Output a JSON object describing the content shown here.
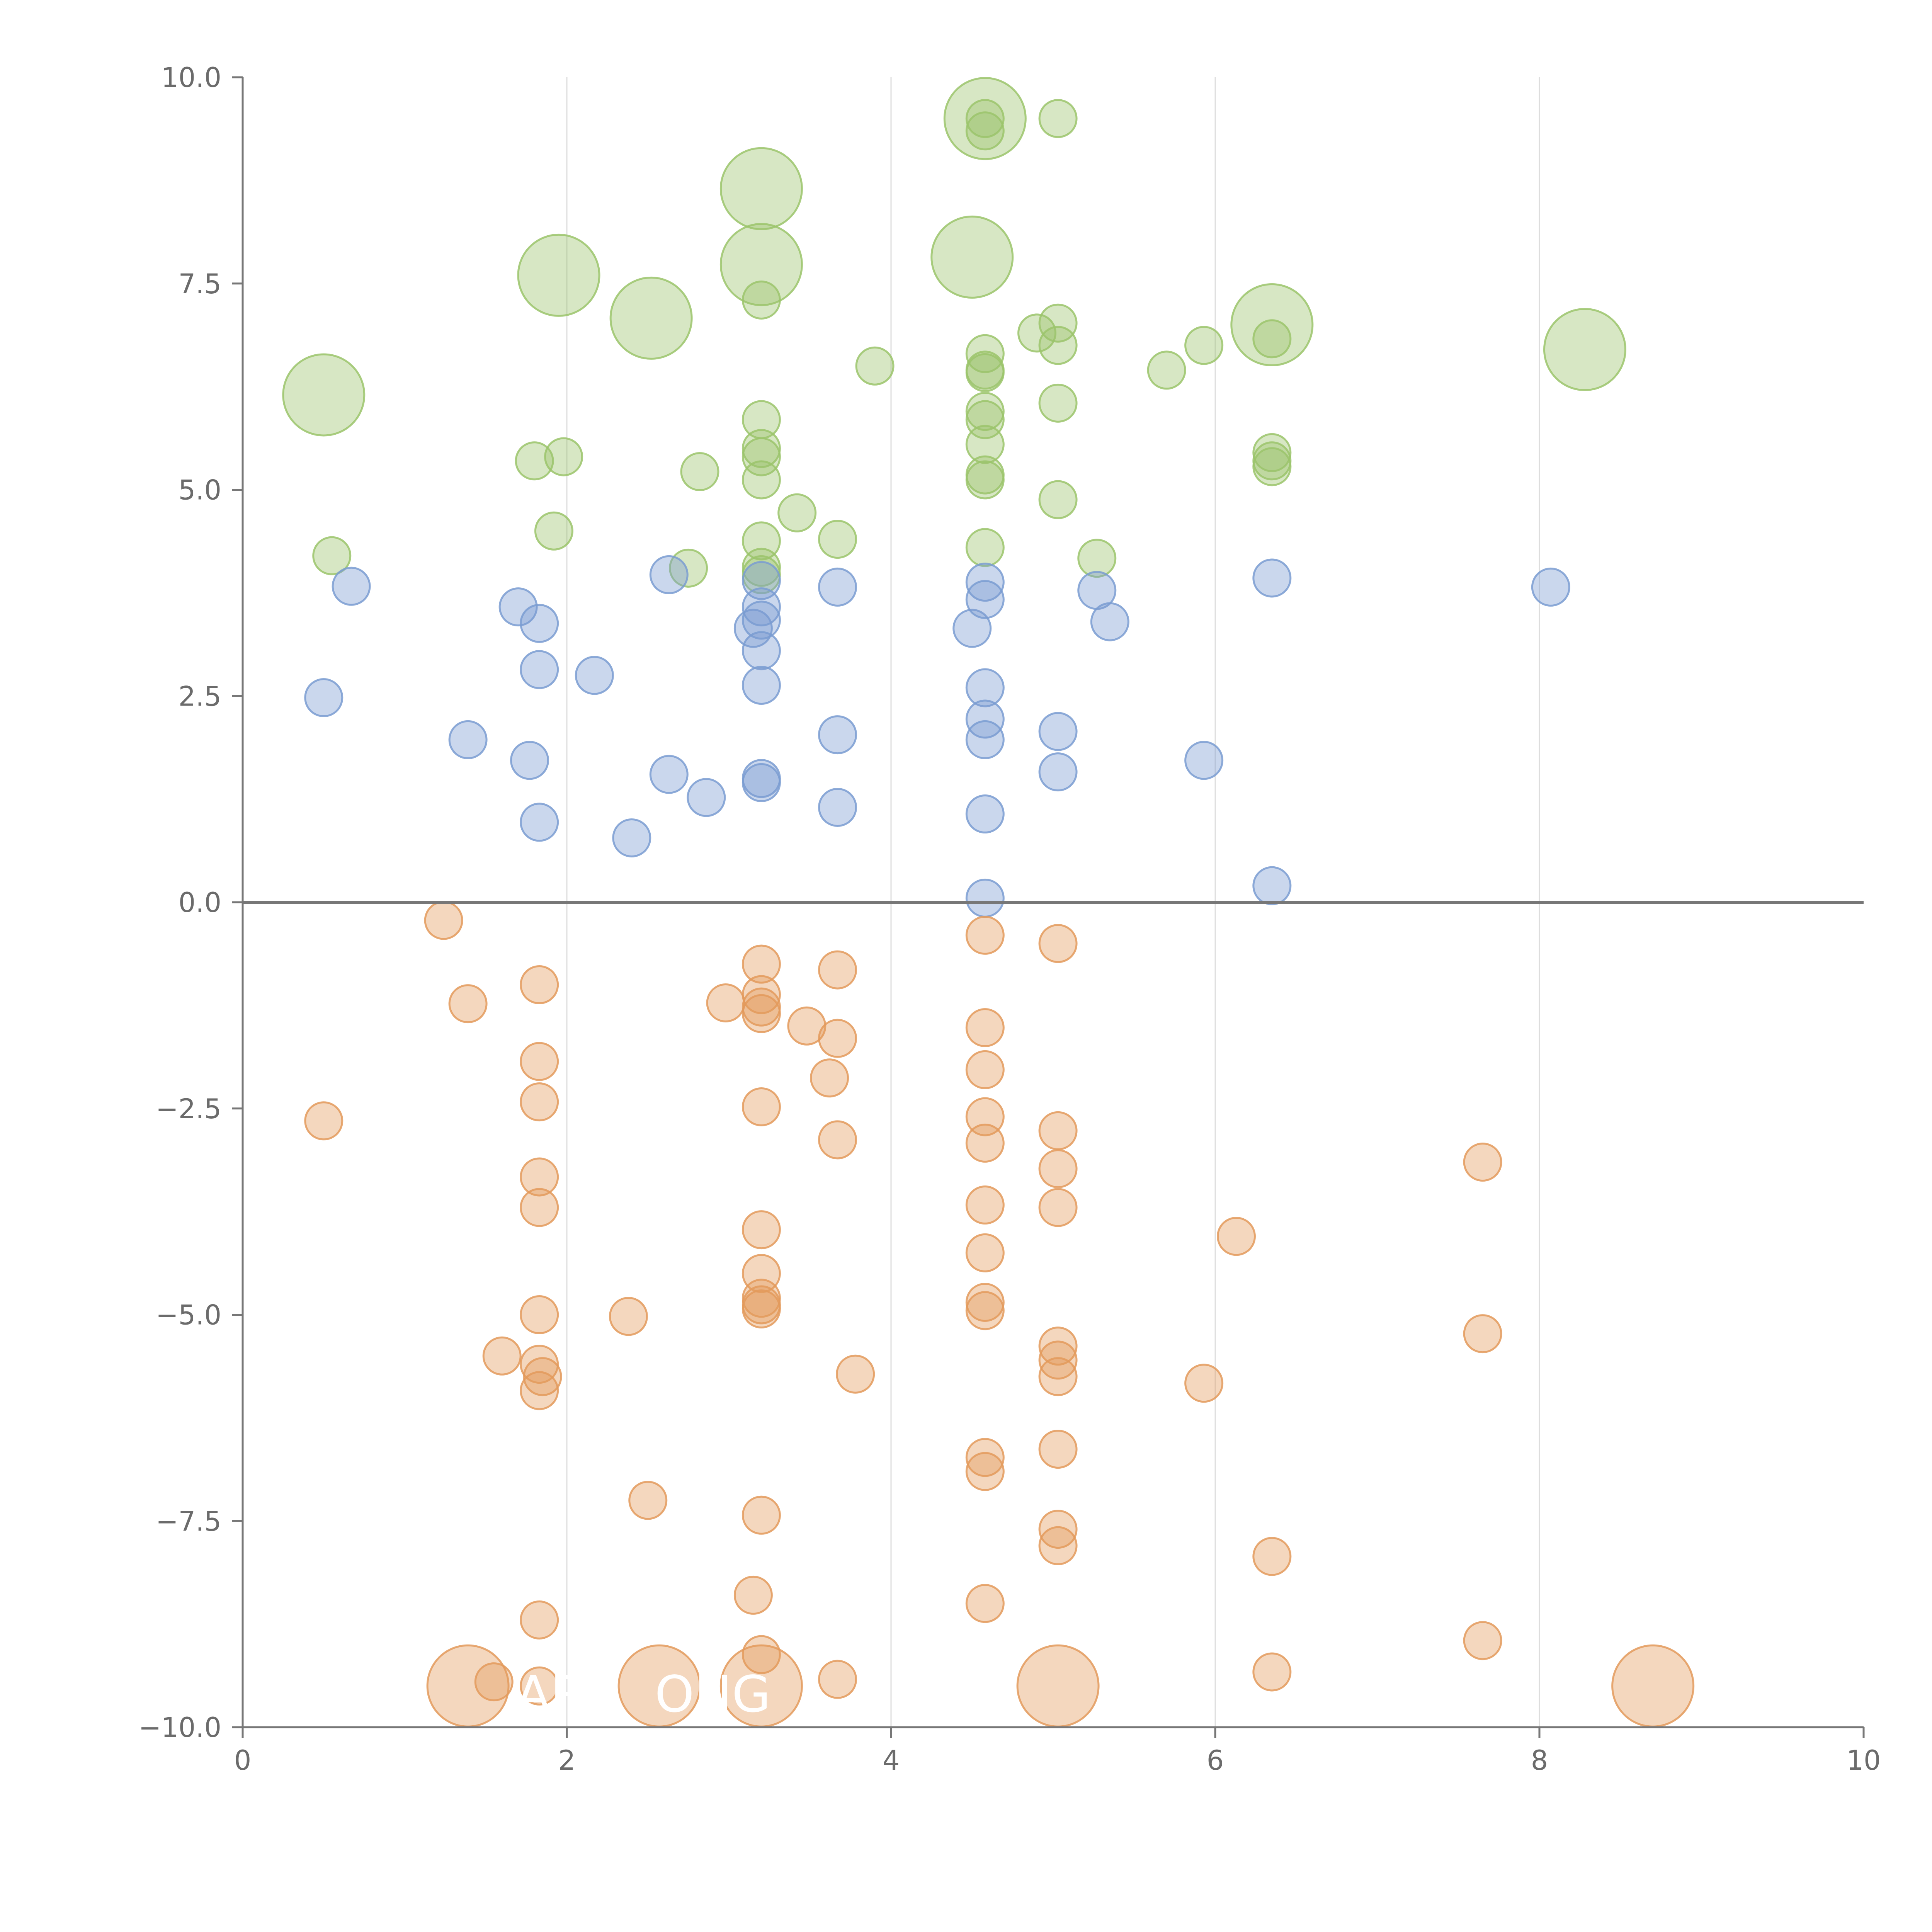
{
  "chart_data": {
    "type": "scatter",
    "title": "",
    "xlabel": "",
    "ylabel": "",
    "xlim": [
      0,
      10
    ],
    "ylim": [
      -10,
      10
    ],
    "x_ticks": [
      "0",
      "2",
      "4",
      "6",
      "8",
      "10"
    ],
    "y_ticks": [
      "10.0",
      "7.5",
      "5.0",
      "2.5",
      "0.0",
      "−2.5",
      "−5.0",
      "−7.5",
      "−10.0"
    ],
    "x_grid_values": [
      2,
      4,
      6,
      8
    ],
    "reference_line_y": 0,
    "colors": {
      "green": "#9bc46b",
      "blue": "#7a9cd1",
      "orange": "#e39a5c"
    },
    "point_fill_opacity": 0.4,
    "bubble_labels": [
      {
        "text": "AR",
        "x": 1.9,
        "y": -9.6
      },
      {
        "text": "ONG",
        "x": 2.9,
        "y": -9.6
      }
    ],
    "series": [
      {
        "name": "green",
        "color": "#9bc46b",
        "points": [
          [
            0.5,
            6.15,
            2
          ],
          [
            0.55,
            4.2,
            1
          ],
          [
            1.8,
            5.35,
            1
          ],
          [
            1.95,
            7.6,
            2
          ],
          [
            1.98,
            5.4,
            1
          ],
          [
            1.92,
            4.5,
            1
          ],
          [
            2.52,
            7.08,
            2
          ],
          [
            2.82,
            5.22,
            1
          ],
          [
            2.75,
            4.05,
            1
          ],
          [
            3.2,
            8.65,
            2
          ],
          [
            3.2,
            7.73,
            2
          ],
          [
            3.2,
            7.3,
            1
          ],
          [
            3.2,
            5.85,
            1
          ],
          [
            3.2,
            5.5,
            1
          ],
          [
            3.2,
            5.4,
            1
          ],
          [
            3.2,
            5.12,
            1
          ],
          [
            3.2,
            4.38,
            1
          ],
          [
            3.2,
            4.06,
            1
          ],
          [
            3.2,
            3.97,
            1
          ],
          [
            3.42,
            4.72,
            1
          ],
          [
            3.67,
            4.4,
            1
          ],
          [
            3.9,
            6.5,
            1
          ],
          [
            4.5,
            7.82,
            2
          ],
          [
            4.58,
            9.5,
            2
          ],
          [
            4.58,
            9.5,
            1
          ],
          [
            4.58,
            9.35,
            1
          ],
          [
            4.58,
            6.65,
            1
          ],
          [
            4.58,
            6.45,
            1
          ],
          [
            4.58,
            6.42,
            1
          ],
          [
            4.58,
            5.95,
            1
          ],
          [
            4.58,
            5.85,
            1
          ],
          [
            4.58,
            5.55,
            1
          ],
          [
            4.58,
            5.18,
            1
          ],
          [
            4.58,
            5.12,
            1
          ],
          [
            4.58,
            4.3,
            1
          ],
          [
            4.9,
            6.9,
            1
          ],
          [
            5.03,
            9.5,
            1
          ],
          [
            5.03,
            7.02,
            1
          ],
          [
            5.03,
            6.75,
            1
          ],
          [
            5.03,
            6.05,
            1
          ],
          [
            5.03,
            4.88,
            1
          ],
          [
            5.27,
            4.17,
            1
          ],
          [
            5.7,
            6.45,
            1
          ],
          [
            5.93,
            6.75,
            1
          ],
          [
            6.35,
            7.0,
            2
          ],
          [
            6.35,
            6.83,
            1
          ],
          [
            6.35,
            5.45,
            1
          ],
          [
            6.35,
            5.35,
            1
          ],
          [
            6.35,
            5.28,
            1
          ],
          [
            8.28,
            6.7,
            2
          ]
        ]
      },
      {
        "name": "blue",
        "color": "#7a9cd1",
        "points": [
          [
            0.5,
            2.48,
            1
          ],
          [
            0.67,
            3.83,
            1
          ],
          [
            1.39,
            1.97,
            1
          ],
          [
            1.7,
            3.58,
            1
          ],
          [
            1.77,
            1.72,
            1
          ],
          [
            1.83,
            3.38,
            1
          ],
          [
            1.83,
            2.82,
            1
          ],
          [
            1.83,
            0.97,
            1
          ],
          [
            2.17,
            2.75,
            1
          ],
          [
            2.4,
            0.78,
            1
          ],
          [
            2.63,
            3.97,
            1
          ],
          [
            2.63,
            1.55,
            1
          ],
          [
            2.86,
            1.27,
            1
          ],
          [
            3.15,
            3.32,
            1
          ],
          [
            3.2,
            3.9,
            1
          ],
          [
            3.2,
            3.58,
            1
          ],
          [
            3.2,
            3.42,
            1
          ],
          [
            3.2,
            3.05,
            1
          ],
          [
            3.2,
            2.63,
            1
          ],
          [
            3.2,
            1.5,
            1
          ],
          [
            3.2,
            1.45,
            1
          ],
          [
            3.67,
            3.82,
            1
          ],
          [
            3.67,
            2.03,
            1
          ],
          [
            3.67,
            1.15,
            1
          ],
          [
            4.5,
            3.32,
            1
          ],
          [
            4.58,
            3.88,
            1
          ],
          [
            4.58,
            3.67,
            1
          ],
          [
            4.58,
            2.6,
            1
          ],
          [
            4.58,
            2.22,
            1
          ],
          [
            4.58,
            1.97,
            1
          ],
          [
            4.58,
            1.07,
            1
          ],
          [
            4.58,
            0.05,
            1
          ],
          [
            5.03,
            2.07,
            1
          ],
          [
            5.03,
            1.58,
            1
          ],
          [
            5.27,
            3.78,
            1
          ],
          [
            5.35,
            3.4,
            1
          ],
          [
            5.93,
            1.72,
            1
          ],
          [
            6.35,
            3.93,
            1
          ],
          [
            6.35,
            0.2,
            1
          ],
          [
            8.07,
            3.82,
            1
          ]
        ]
      },
      {
        "name": "orange",
        "color": "#e39a5c",
        "points": [
          [
            0.5,
            -2.65,
            1
          ],
          [
            1.24,
            -0.22,
            1
          ],
          [
            1.39,
            -1.23,
            1
          ],
          [
            1.39,
            -9.5,
            2
          ],
          [
            1.55,
            -9.45,
            1
          ],
          [
            1.6,
            -5.5,
            1
          ],
          [
            1.83,
            -1.0,
            1
          ],
          [
            1.83,
            -1.93,
            1
          ],
          [
            1.83,
            -2.42,
            1
          ],
          [
            1.83,
            -3.33,
            1
          ],
          [
            1.83,
            -3.7,
            1
          ],
          [
            1.83,
            -5.0,
            1
          ],
          [
            1.83,
            -5.6,
            1
          ],
          [
            1.85,
            -5.75,
            1
          ],
          [
            1.83,
            -5.92,
            1
          ],
          [
            1.83,
            -8.7,
            1
          ],
          [
            1.83,
            -9.5,
            1
          ],
          [
            2.38,
            -5.02,
            1
          ],
          [
            2.5,
            -7.25,
            1
          ],
          [
            2.57,
            -9.5,
            2
          ],
          [
            2.98,
            -1.22,
            1
          ],
          [
            3.2,
            -0.75,
            1
          ],
          [
            3.2,
            -1.12,
            1
          ],
          [
            3.2,
            -1.27,
            1
          ],
          [
            3.2,
            -1.35,
            1
          ],
          [
            3.2,
            -2.48,
            1
          ],
          [
            3.2,
            -3.97,
            1
          ],
          [
            3.2,
            -4.5,
            1
          ],
          [
            3.2,
            -4.8,
            1
          ],
          [
            3.2,
            -4.88,
            1
          ],
          [
            3.2,
            -4.93,
            1
          ],
          [
            3.2,
            -7.43,
            1
          ],
          [
            3.15,
            -8.4,
            1
          ],
          [
            3.2,
            -9.12,
            1
          ],
          [
            3.2,
            -9.5,
            2
          ],
          [
            3.48,
            -1.5,
            1
          ],
          [
            3.67,
            -0.82,
            1
          ],
          [
            3.67,
            -1.65,
            1
          ],
          [
            3.62,
            -2.13,
            1
          ],
          [
            3.67,
            -2.88,
            1
          ],
          [
            3.78,
            -5.72,
            1
          ],
          [
            3.67,
            -9.42,
            1
          ],
          [
            4.58,
            -0.4,
            1
          ],
          [
            4.58,
            -1.52,
            1
          ],
          [
            4.58,
            -2.03,
            1
          ],
          [
            4.58,
            -2.6,
            1
          ],
          [
            4.58,
            -2.92,
            1
          ],
          [
            4.58,
            -3.67,
            1
          ],
          [
            4.58,
            -4.25,
            1
          ],
          [
            4.58,
            -4.85,
            1
          ],
          [
            4.58,
            -4.95,
            1
          ],
          [
            4.58,
            -6.73,
            1
          ],
          [
            4.58,
            -6.9,
            1
          ],
          [
            4.58,
            -8.5,
            1
          ],
          [
            5.03,
            -0.5,
            1
          ],
          [
            5.03,
            -2.77,
            1
          ],
          [
            5.03,
            -3.23,
            1
          ],
          [
            5.03,
            -3.7,
            1
          ],
          [
            5.03,
            -5.38,
            1
          ],
          [
            5.03,
            -5.55,
            1
          ],
          [
            5.03,
            -5.75,
            1
          ],
          [
            5.03,
            -6.63,
            1
          ],
          [
            5.03,
            -7.6,
            1
          ],
          [
            5.03,
            -7.8,
            1
          ],
          [
            5.03,
            -9.5,
            2
          ],
          [
            5.93,
            -5.83,
            1
          ],
          [
            6.13,
            -4.05,
            1
          ],
          [
            6.35,
            -7.93,
            1
          ],
          [
            6.35,
            -9.33,
            1
          ],
          [
            7.65,
            -3.15,
            1
          ],
          [
            7.65,
            -5.23,
            1
          ],
          [
            7.65,
            -8.95,
            1
          ],
          [
            8.7,
            -9.5,
            2
          ]
        ]
      }
    ]
  }
}
